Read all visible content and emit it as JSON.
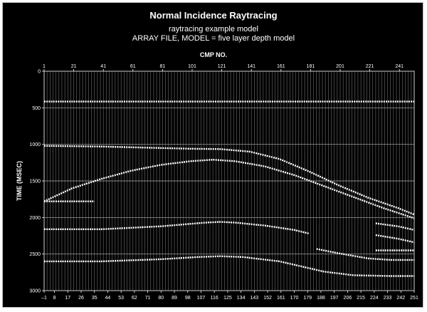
{
  "chart_data": {
    "type": "scatter",
    "title": "Normal Incidence Raytracing",
    "subtitle_lines": [
      "raytracing example model",
      "ARRAY FILE, MODEL = five layer depth model"
    ],
    "xlabel": "CMP NO.",
    "ylabel": "TIME (MSEC)",
    "xlim": [
      1,
      251
    ],
    "ylim": [
      0,
      3000
    ],
    "y_inverted": true,
    "grid": true,
    "top_ticks": [
      "1",
      "21",
      "41",
      "61",
      "81",
      "101",
      "121",
      "141",
      "161",
      "181",
      "201",
      "221",
      "241"
    ],
    "bottom_ticks": [
      "–1",
      "8",
      "17",
      "26",
      "35",
      "44",
      "53",
      "62",
      "71",
      "80",
      "89",
      "98",
      "107",
      "116",
      "125",
      "134",
      "143",
      "152",
      "161",
      "170",
      "179",
      "188",
      "197",
      "206",
      "215",
      "224",
      "233",
      "242",
      "251"
    ],
    "y_ticks": [
      0,
      500,
      1000,
      1500,
      2000,
      2500,
      3000
    ],
    "series": [
      {
        "x": [
          1,
          251
        ],
        "y": [
          415,
          415
        ]
      },
      {
        "x": [
          1,
          40,
          70,
          100,
          120,
          140,
          160,
          180,
          200,
          220,
          240,
          251
        ],
        "y": [
          1020,
          1030,
          1045,
          1060,
          1065,
          1100,
          1200,
          1370,
          1560,
          1730,
          1870,
          1960
        ]
      },
      {
        "x": [
          1,
          20,
          40,
          60,
          80,
          100,
          115,
          130,
          150,
          170,
          190,
          210,
          230,
          251
        ],
        "y": [
          1780,
          1600,
          1470,
          1360,
          1280,
          1230,
          1210,
          1230,
          1300,
          1420,
          1570,
          1720,
          1870,
          2010
        ]
      },
      {
        "x": [
          1,
          35
        ],
        "y": [
          1780,
          1780
        ]
      },
      {
        "x": [
          1,
          40,
          80,
          110,
          120,
          130,
          150,
          170,
          180
        ],
        "y": [
          2160,
          2160,
          2120,
          2070,
          2060,
          2070,
          2110,
          2170,
          2220
        ]
      },
      {
        "x": [
          185,
          200,
          220,
          235,
          251
        ],
        "y": [
          2430,
          2490,
          2560,
          2580,
          2580
        ]
      },
      {
        "x": [
          1,
          40,
          80,
          105,
          120,
          135,
          160,
          175,
          190,
          210,
          235,
          251
        ],
        "y": [
          2600,
          2600,
          2570,
          2540,
          2530,
          2540,
          2600,
          2670,
          2740,
          2790,
          2800,
          2800
        ]
      },
      {
        "x": [
          225,
          240,
          251
        ],
        "y": [
          2080,
          2120,
          2170
        ]
      },
      {
        "x": [
          225,
          240,
          251
        ],
        "y": [
          2240,
          2290,
          2340
        ]
      },
      {
        "x": [
          225,
          251
        ],
        "y": [
          2450,
          2450
        ]
      }
    ]
  }
}
